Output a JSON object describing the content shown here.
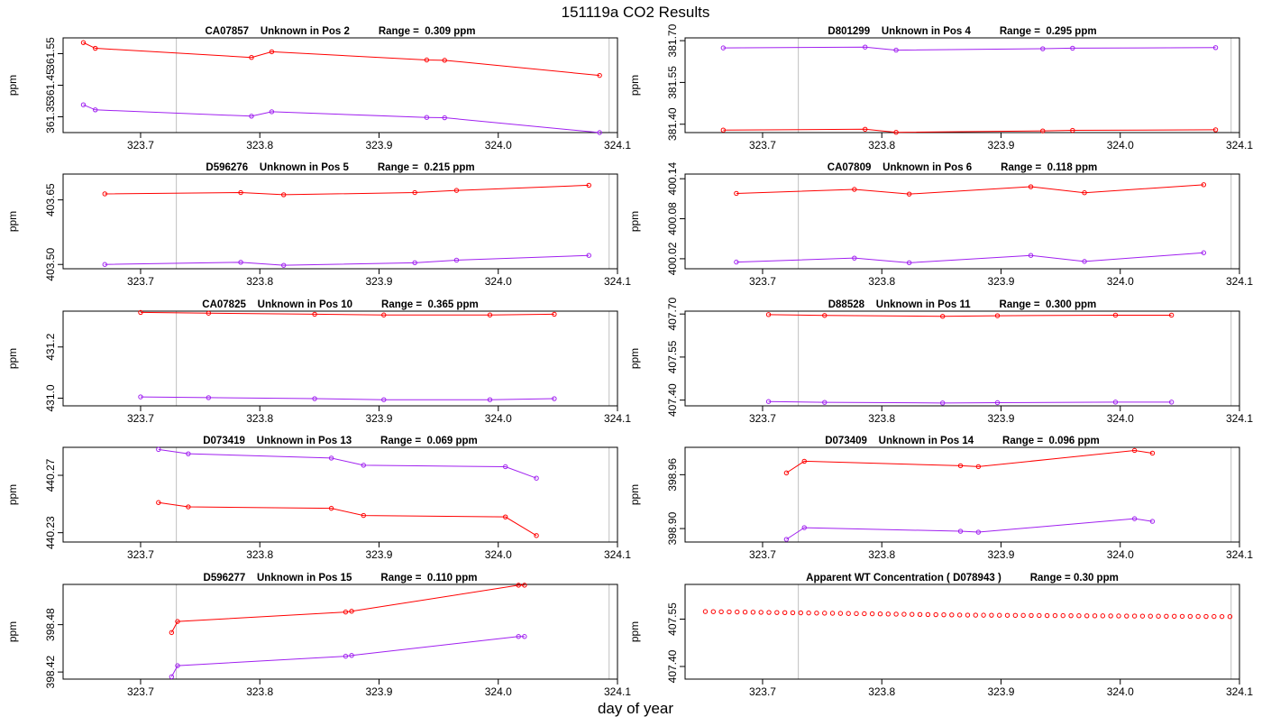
{
  "page": {
    "title": "151119a  CO2 Results",
    "xlabel": "day of year"
  },
  "colors": {
    "red": "#ff0000",
    "purple": "#a020f0",
    "vline": "#bebebe",
    "axis": "#000000"
  },
  "chart_data": [
    {
      "type": "line",
      "title": "CA07857    Unknown in Pos 2          Range =  0.309 ppm",
      "ylabel": "ppm",
      "xlim": [
        323.635,
        324.1
      ],
      "ylim": [
        361.3,
        361.6
      ],
      "xticks": [
        "323.7",
        "323.8",
        "323.9",
        "324.0",
        "324.1"
      ],
      "yticks": [
        "361.35",
        "361.45",
        "361.55"
      ],
      "vlines": [
        323.73,
        324.093
      ],
      "series": [
        {
          "name": "red",
          "color": "red",
          "x": [
            323.652,
            323.662,
            323.793,
            323.81,
            323.94,
            323.955,
            324.085
          ],
          "y": [
            361.585,
            361.567,
            361.538,
            361.556,
            361.53,
            361.529,
            361.481
          ]
        },
        {
          "name": "purple",
          "color": "purple",
          "x": [
            323.652,
            323.662,
            323.793,
            323.81,
            323.94,
            323.955,
            324.085
          ],
          "y": [
            361.388,
            361.372,
            361.352,
            361.366,
            361.348,
            361.347,
            361.3
          ]
        }
      ]
    },
    {
      "type": "line",
      "title": "D801299    Unknown in Pos 4          Range =  0.295 ppm",
      "ylabel": "ppm",
      "xlim": [
        323.635,
        324.1
      ],
      "ylim": [
        381.37,
        381.71
      ],
      "xticks": [
        "323.7",
        "323.8",
        "323.9",
        "324.0",
        "324.1"
      ],
      "yticks": [
        "381.40",
        "381.55",
        "381.70"
      ],
      "vlines": [
        323.73,
        324.093
      ],
      "series": [
        {
          "name": "red",
          "color": "red",
          "x": [
            323.667,
            323.786,
            323.812,
            323.935,
            323.96,
            324.08
          ],
          "y": [
            381.379,
            381.382,
            381.371,
            381.376,
            381.378,
            381.38
          ]
        },
        {
          "name": "purple",
          "color": "purple",
          "x": [
            323.667,
            323.786,
            323.812,
            323.935,
            323.96,
            324.08
          ],
          "y": [
            381.674,
            381.677,
            381.666,
            381.671,
            381.673,
            381.675
          ]
        }
      ]
    },
    {
      "type": "line",
      "title": "D596276    Unknown in Pos 5          Range =  0.215 ppm",
      "ylabel": "ppm",
      "xlim": [
        323.635,
        324.1
      ],
      "ylim": [
        403.49,
        403.71
      ],
      "xticks": [
        "323.7",
        "323.8",
        "323.9",
        "324.0",
        "324.1"
      ],
      "yticks": [
        "403.50",
        "403.65"
      ],
      "vlines": [
        323.73,
        324.093
      ],
      "series": [
        {
          "name": "red",
          "color": "red",
          "x": [
            323.67,
            323.784,
            323.82,
            323.93,
            323.965,
            324.076
          ],
          "y": [
            403.664,
            403.667,
            403.662,
            403.667,
            403.672,
            403.684
          ]
        },
        {
          "name": "purple",
          "color": "purple",
          "x": [
            323.67,
            323.784,
            323.82,
            323.93,
            323.965,
            324.076
          ],
          "y": [
            403.5,
            403.505,
            403.498,
            403.504,
            403.51,
            403.521
          ]
        }
      ]
    },
    {
      "type": "line",
      "title": "CA07809    Unknown in Pos 6          Range =  0.118 ppm",
      "ylabel": "ppm",
      "xlim": [
        323.635,
        324.1
      ],
      "ylim": [
        400.005,
        400.147
      ],
      "xticks": [
        "323.7",
        "323.8",
        "323.9",
        "324.0",
        "324.1"
      ],
      "yticks": [
        "400.02",
        "400.08",
        "400.14"
      ],
      "vlines": [
        323.73,
        324.093
      ],
      "series": [
        {
          "name": "red",
          "color": "red",
          "x": [
            323.678,
            323.777,
            323.823,
            323.925,
            323.97,
            324.07
          ],
          "y": [
            400.118,
            400.124,
            400.117,
            400.128,
            400.119,
            400.131
          ]
        },
        {
          "name": "purple",
          "color": "purple",
          "x": [
            323.678,
            323.777,
            323.823,
            323.925,
            323.97,
            324.07
          ],
          "y": [
            400.015,
            400.021,
            400.014,
            400.025,
            400.016,
            400.029
          ]
        }
      ]
    },
    {
      "type": "line",
      "title": "CA07825    Unknown in Pos 10          Range =  0.365 ppm",
      "ylabel": "ppm",
      "xlim": [
        323.635,
        324.1
      ],
      "ylim": [
        430.97,
        431.34
      ],
      "xticks": [
        "323.7",
        "323.8",
        "323.9",
        "324.0",
        "324.1"
      ],
      "yticks": [
        "431.0",
        "431.2"
      ],
      "vlines": [
        323.73,
        324.093
      ],
      "series": [
        {
          "name": "red",
          "color": "red",
          "x": [
            323.7,
            323.757,
            323.846,
            323.904,
            323.993,
            324.047
          ],
          "y": [
            431.335,
            431.332,
            431.328,
            431.325,
            431.325,
            431.328
          ]
        },
        {
          "name": "purple",
          "color": "purple",
          "x": [
            323.7,
            323.757,
            323.846,
            323.904,
            323.993,
            324.047
          ],
          "y": [
            431.005,
            431.002,
            430.998,
            430.994,
            430.994,
            430.998
          ]
        }
      ]
    },
    {
      "type": "line",
      "title": "D88528    Unknown in Pos 11          Range =  0.300 ppm",
      "ylabel": "ppm",
      "xlim": [
        323.635,
        324.1
      ],
      "ylim": [
        407.38,
        407.71
      ],
      "xticks": [
        "323.7",
        "323.8",
        "323.9",
        "324.0",
        "324.1"
      ],
      "yticks": [
        "407.40",
        "407.55",
        "407.70"
      ],
      "vlines": [
        323.73,
        324.093
      ],
      "series": [
        {
          "name": "red",
          "color": "red",
          "x": [
            323.705,
            323.752,
            323.851,
            323.897,
            323.996,
            324.043
          ],
          "y": [
            407.698,
            407.695,
            407.692,
            407.694,
            407.696,
            407.696
          ]
        },
        {
          "name": "purple",
          "color": "purple",
          "x": [
            323.705,
            323.752,
            323.851,
            323.897,
            323.996,
            324.043
          ],
          "y": [
            407.395,
            407.392,
            407.39,
            407.391,
            407.393,
            407.393
          ]
        }
      ]
    },
    {
      "type": "line",
      "title": "D073419    Unknown in Pos 13          Range =  0.069 ppm",
      "ylabel": "ppm",
      "xlim": [
        323.635,
        324.1
      ],
      "ylim": [
        440.2235,
        440.2895
      ],
      "xticks": [
        "323.7",
        "323.8",
        "323.9",
        "324.0",
        "324.1"
      ],
      "yticks": [
        "440.23",
        "440.27"
      ],
      "vlines": [
        323.73,
        324.093
      ],
      "series": [
        {
          "name": "red",
          "color": "red",
          "x": [
            323.715,
            323.74,
            323.86,
            323.887,
            324.006,
            324.032
          ],
          "y": [
            440.251,
            440.248,
            440.247,
            440.242,
            440.241,
            440.228
          ]
        },
        {
          "name": "purple",
          "color": "purple",
          "x": [
            323.715,
            323.74,
            323.86,
            323.887,
            324.006,
            324.032
          ],
          "y": [
            440.288,
            440.285,
            440.282,
            440.277,
            440.276,
            440.268
          ]
        }
      ]
    },
    {
      "type": "line",
      "title": "D073409    Unknown in Pos 14          Range =  0.096 ppm",
      "ylabel": "ppm",
      "xlim": [
        323.635,
        324.1
      ],
      "ylim": [
        398.885,
        398.9905
      ],
      "xticks": [
        "323.7",
        "323.8",
        "323.9",
        "324.0",
        "324.1"
      ],
      "yticks": [
        "398.90",
        "398.96"
      ],
      "vlines": [
        323.73,
        324.093
      ],
      "series": [
        {
          "name": "red",
          "color": "red",
          "x": [
            323.72,
            323.735,
            323.866,
            323.881,
            324.012,
            324.027
          ],
          "y": [
            398.962,
            398.975,
            398.97,
            398.969,
            398.987,
            398.984
          ]
        },
        {
          "name": "purple",
          "color": "purple",
          "x": [
            323.72,
            323.735,
            323.866,
            323.881,
            324.012,
            324.027
          ],
          "y": [
            398.888,
            398.901,
            398.897,
            398.896,
            398.911,
            398.908
          ]
        }
      ]
    },
    {
      "type": "line",
      "title": "D596277    Unknown in Pos 15          Range =  0.110 ppm",
      "ylabel": "ppm",
      "xlim": [
        323.635,
        324.1
      ],
      "ylim": [
        398.411,
        398.531
      ],
      "xticks": [
        "323.7",
        "323.8",
        "323.9",
        "324.0",
        "324.1"
      ],
      "yticks": [
        "398.42",
        "398.48"
      ],
      "vlines": [
        323.73,
        324.093
      ],
      "series": [
        {
          "name": "red",
          "color": "red",
          "x": [
            323.726,
            323.731,
            323.872,
            323.877,
            324.017,
            324.022
          ],
          "y": [
            398.47,
            398.484,
            398.496,
            398.497,
            398.53,
            398.53
          ]
        },
        {
          "name": "purple",
          "color": "purple",
          "x": [
            323.726,
            323.731,
            323.872,
            323.877,
            324.017,
            324.022
          ],
          "y": [
            398.414,
            398.428,
            398.44,
            398.441,
            398.465,
            398.465
          ]
        }
      ]
    },
    {
      "type": "scatter",
      "title": "Apparent WT Concentration ( D078943 )          Range = 0.30 ppm",
      "ylabel": "ppm",
      "xlim": [
        323.635,
        324.1
      ],
      "ylim": [
        407.36,
        407.66
      ],
      "xticks": [
        "323.7",
        "323.8",
        "323.9",
        "324.0",
        "324.1"
      ],
      "yticks": [
        "407.40",
        "407.55"
      ],
      "vlines": [
        323.73,
        324.093
      ],
      "points": {
        "x_start": 323.652,
        "x_end": 324.092,
        "count": 67,
        "y_start": 407.574,
        "y_end": 407.558,
        "color": "red"
      }
    }
  ]
}
